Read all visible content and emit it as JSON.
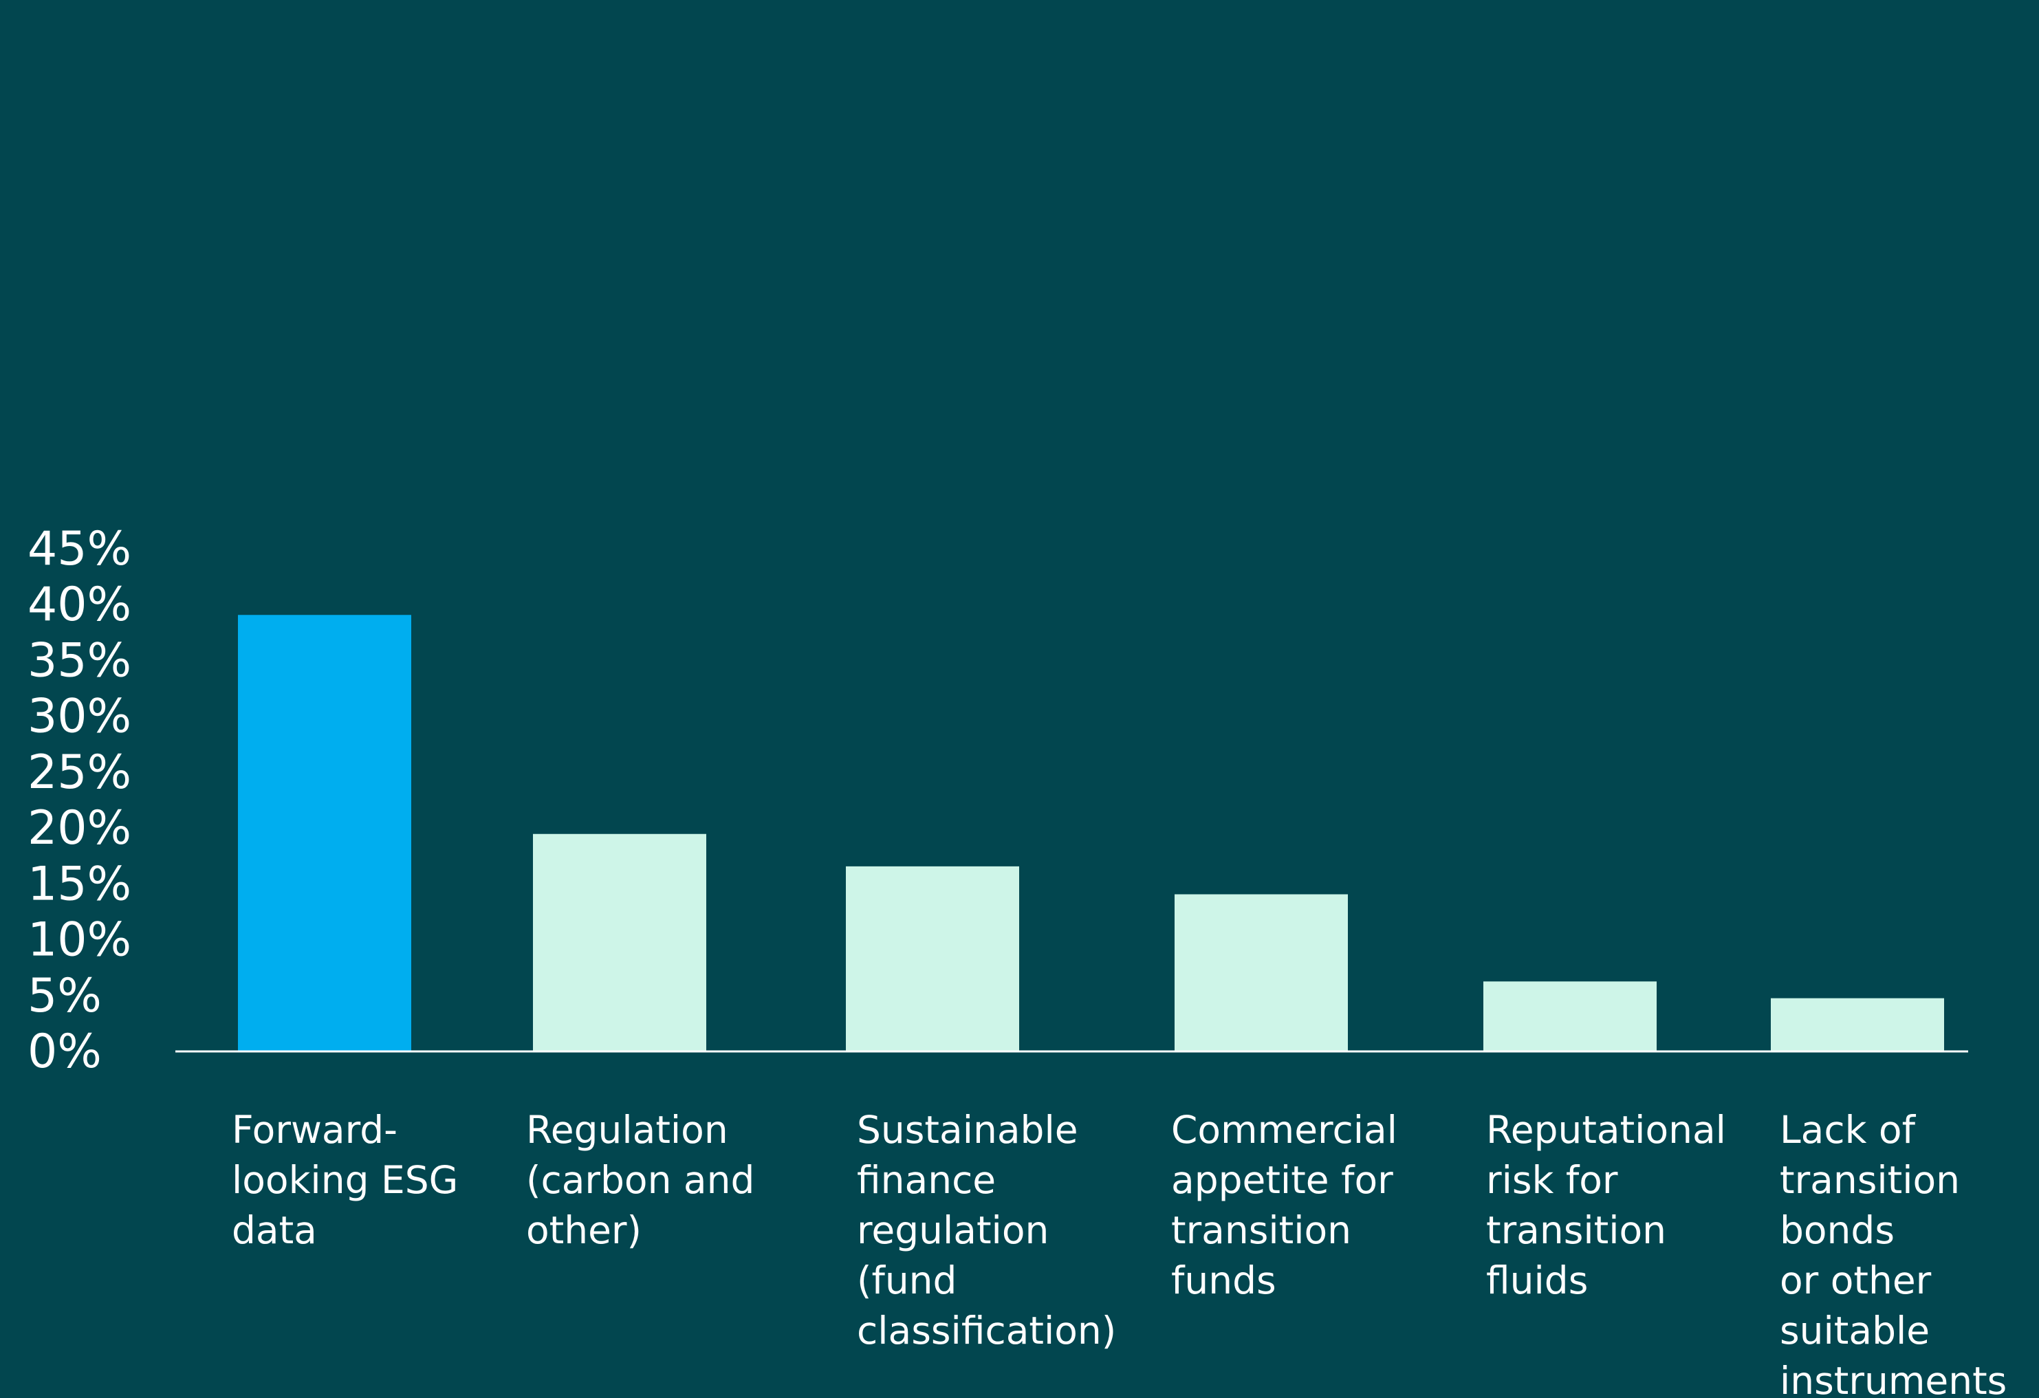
{
  "chart_data": {
    "type": "bar",
    "title": "",
    "xlabel": "",
    "ylabel": "",
    "ylim": [
      0,
      45
    ],
    "yticks": [
      "0%",
      "5%",
      "10%",
      "15%",
      "20%",
      "25%",
      "30%",
      "35%",
      "40%",
      "45%"
    ],
    "grid": false,
    "legend": "none",
    "categories": [
      [
        "Forward-",
        "looking ESG",
        "data"
      ],
      [
        "Regulation",
        "(carbon and",
        "other)"
      ],
      [
        "Sustainable",
        "finance",
        "regulation",
        "(fund",
        "classification)"
      ],
      [
        "Commercial",
        "appetite for",
        "transition",
        "funds"
      ],
      [
        "Reputational",
        "risk for",
        "transition",
        "fluids"
      ],
      [
        "Lack of",
        "transition",
        "bonds",
        "or other",
        "suitable",
        "instruments"
      ]
    ],
    "values": [
      39,
      19.4,
      16.5,
      14,
      6.2,
      4.7
    ],
    "colors": {
      "background": "#02464f",
      "highlight": "#00aeef",
      "bar": "#cef5e8",
      "axis": "#ffffff",
      "text": "#ffffff"
    },
    "highlight_index": 0
  }
}
